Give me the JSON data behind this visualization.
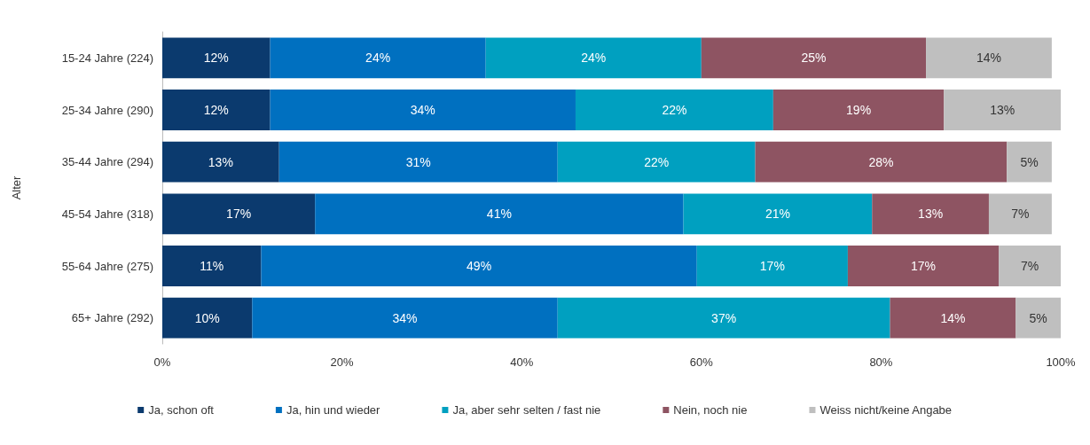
{
  "chart_data": {
    "type": "bar",
    "orientation": "horizontal",
    "stacked": true,
    "ylabel": "Alter",
    "categories": [
      "15-24 Jahre (224)",
      "25-34 Jahre (290)",
      "35-44 Jahre (294)",
      "45-54 Jahre (318)",
      "55-64 Jahre (275)",
      "65+ Jahre (292)"
    ],
    "series": [
      {
        "name": "Ja, schon oft",
        "color": "#0b3a6e",
        "values": [
          12,
          12,
          13,
          17,
          11,
          10
        ],
        "value_labels": [
          "12%",
          "12%",
          "13%",
          "17%",
          "11%",
          "10%"
        ]
      },
      {
        "name": "Ja, hin und wieder",
        "color": "#0070c0",
        "values": [
          24,
          34,
          31,
          41,
          48.5,
          34
        ],
        "value_labels": [
          "24%",
          "34%",
          "31%",
          "41%",
          "49%",
          "34%"
        ]
      },
      {
        "name": "Ja, aber sehr selten / fast nie",
        "color": "#00a0c0",
        "values": [
          24,
          22,
          22,
          21,
          16.8,
          37
        ],
        "value_labels": [
          "24%",
          "22%",
          "22%",
          "21%",
          "17%",
          "37%"
        ]
      },
      {
        "name": "Nein, noch nie",
        "color": "#8e5462",
        "values": [
          25,
          19,
          28,
          13,
          16.8,
          14
        ],
        "value_labels": [
          "25%",
          "19%",
          "28%",
          "13%",
          "17%",
          "14%"
        ]
      },
      {
        "name": "Weiss nicht/keine Angabe",
        "color": "#bfbfbf",
        "values": [
          14,
          13,
          5,
          7,
          6.9,
          5
        ],
        "value_labels": [
          "14%",
          "13%",
          "5%",
          "7%",
          "7%",
          "5%"
        ]
      }
    ],
    "xlim": [
      0,
      100
    ],
    "xticks": [
      {
        "value": 0,
        "label": "0%"
      },
      {
        "value": 20,
        "label": "20%"
      },
      {
        "value": 40,
        "label": "40%"
      },
      {
        "value": 60,
        "label": "60%"
      },
      {
        "value": 80,
        "label": "80%"
      },
      {
        "value": 100,
        "label": "100%"
      }
    ],
    "grid": false,
    "legend": "bottom"
  }
}
